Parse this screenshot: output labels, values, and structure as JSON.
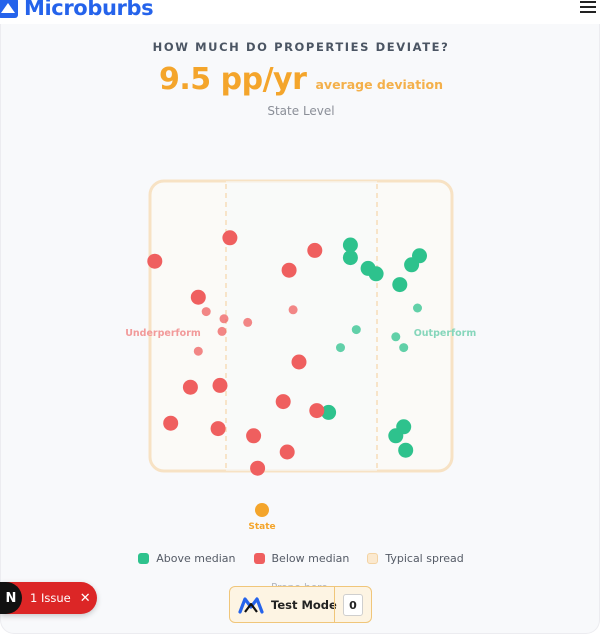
{
  "app": {
    "brand": "Microburbs"
  },
  "header": {
    "menu_icon": "hamburger-menu-icon"
  },
  "card": {
    "kicker": "HOW MUCH DO PROPERTIES DEVIATE?",
    "headline_value": "9.5 pp/yr",
    "headline_label": "average deviation",
    "level": "State Level"
  },
  "chart_data": {
    "type": "scatter",
    "title": "",
    "xlabel_left": "Underperform",
    "xlabel_right": "Outperform",
    "marker_label": "State",
    "typical_spread": true,
    "series": [
      {
        "name": "Above median",
        "color": "#2ec28d",
        "points": [
          {
            "x": 1.25,
            "y": 4.5
          },
          {
            "x": 1.25,
            "y": 3.8
          },
          {
            "x": 1.7,
            "y": 3.2
          },
          {
            "x": 1.9,
            "y": 2.9
          },
          {
            "x": 3.0,
            "y": 3.9
          },
          {
            "x": 2.8,
            "y": 3.4
          },
          {
            "x": 2.5,
            "y": 2.3
          },
          {
            "x": 2.95,
            "y": 1.0
          },
          {
            "x": 1.4,
            "y": -0.2
          },
          {
            "x": 1.0,
            "y": -1.2
          },
          {
            "x": 2.4,
            "y": -0.6
          },
          {
            "x": 2.6,
            "y": -1.2
          },
          {
            "x": 0.7,
            "y": -4.8
          },
          {
            "x": 2.6,
            "y": -5.6
          },
          {
            "x": 2.65,
            "y": -6.9
          },
          {
            "x": 2.4,
            "y": -6.1
          }
        ]
      },
      {
        "name": "Below median",
        "color": "#ef5f5f",
        "points": [
          {
            "x": -3.7,
            "y": 3.6
          },
          {
            "x": -1.8,
            "y": 4.9
          },
          {
            "x": -0.3,
            "y": 3.1
          },
          {
            "x": 0.35,
            "y": 4.2
          },
          {
            "x": -2.6,
            "y": 1.6
          },
          {
            "x": -2.4,
            "y": 0.8
          },
          {
            "x": -1.95,
            "y": 0.4
          },
          {
            "x": -1.35,
            "y": 0.2
          },
          {
            "x": -2.0,
            "y": -0.3
          },
          {
            "x": -2.6,
            "y": -1.4
          },
          {
            "x": -0.2,
            "y": 0.9
          },
          {
            "x": -0.05,
            "y": -2.0
          },
          {
            "x": -3.3,
            "y": -5.4
          },
          {
            "x": -0.45,
            "y": -4.2
          },
          {
            "x": 0.4,
            "y": -4.7
          },
          {
            "x": -2.1,
            "y": -5.7
          },
          {
            "x": -1.2,
            "y": -6.1
          },
          {
            "x": -0.35,
            "y": -7.0
          },
          {
            "x": -1.1,
            "y": -7.9
          },
          {
            "x": -2.05,
            "y": -3.3
          },
          {
            "x": -2.8,
            "y": -3.4
          }
        ]
      }
    ]
  },
  "legend": [
    {
      "label": "Above median",
      "color": "#2ec28d"
    },
    {
      "label": "Below median",
      "color": "#ef5f5f"
    },
    {
      "label": "Typical spread",
      "color": "#fbe9cf"
    }
  ],
  "footnote": "Prope                    here.",
  "issue": {
    "badge": "N",
    "label": "1 Issue",
    "close_icon": "close-icon"
  },
  "testmode": {
    "label": "Test Mode",
    "count": "0",
    "icon": "microburbs-m-icon"
  }
}
